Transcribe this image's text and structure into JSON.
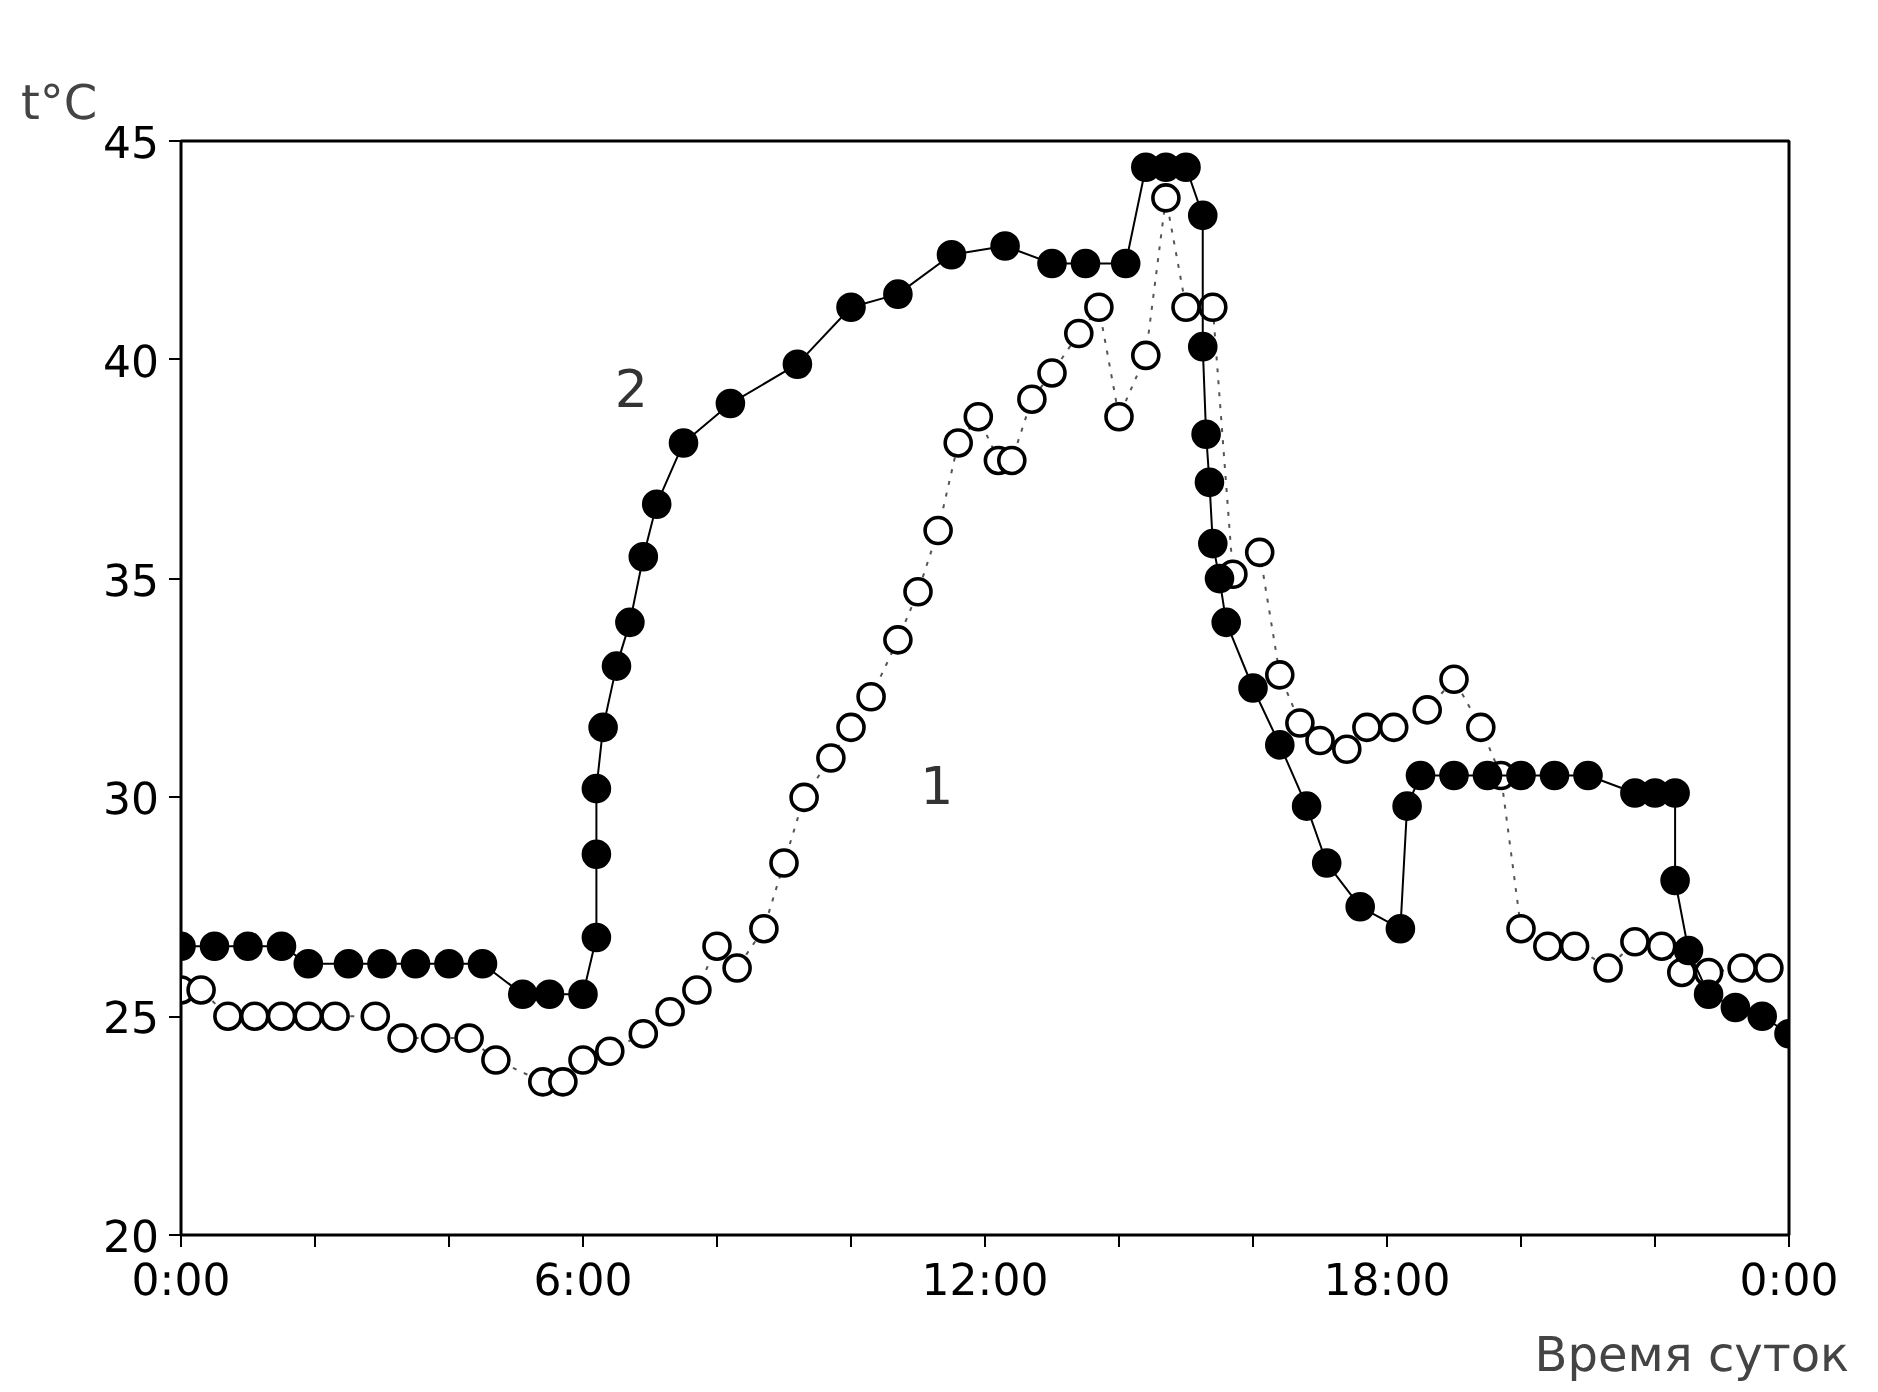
{
  "chart_data": {
    "type": "line",
    "xlabel": "Время суток",
    "ylabel": "t°C",
    "xlim": [
      0,
      24
    ],
    "ylim": [
      20,
      45
    ],
    "xticks": [
      {
        "value": 0,
        "label": "0:00"
      },
      {
        "value": 2,
        "label": null
      },
      {
        "value": 4,
        "label": null
      },
      {
        "value": 6,
        "label": "6:00"
      },
      {
        "value": 8,
        "label": null
      },
      {
        "value": 10,
        "label": null
      },
      {
        "value": 12,
        "label": "12:00"
      },
      {
        "value": 14,
        "label": null
      },
      {
        "value": 16,
        "label": null
      },
      {
        "value": 18,
        "label": "18:00"
      },
      {
        "value": 20,
        "label": null
      },
      {
        "value": 22,
        "label": null
      },
      {
        "value": 24,
        "label": "0:00"
      }
    ],
    "yticks": [
      20,
      25,
      30,
      35,
      40,
      45
    ],
    "grid": false,
    "marker": "circle",
    "annotations": [
      "1",
      "2"
    ],
    "series": [
      {
        "color": "#ffffff",
        "line_style": "dotted",
        "x": [
          0,
          0.3,
          0.7,
          1.1,
          1.5,
          1.9,
          2.3,
          2.9,
          3.3,
          3.8,
          4.3,
          4.7,
          5.4,
          5.7,
          6.0,
          6.4,
          6.9,
          7.3,
          7.7,
          8.0,
          8.3,
          8.7,
          9.0,
          9.3,
          9.7,
          10.0,
          10.3,
          10.7,
          11.0,
          11.3,
          11.6,
          11.9,
          12.2,
          12.4,
          12.7,
          13.0,
          13.4,
          13.7,
          14.0,
          14.4,
          14.7,
          15.0,
          15.4,
          15.7,
          16.1,
          16.4,
          16.7,
          17.0,
          17.4,
          17.7,
          18.1,
          18.6,
          19.0,
          19.4,
          19.7,
          20.0,
          20.4,
          20.8,
          21.3,
          21.7,
          22.1,
          22.4,
          22.8,
          23.3,
          23.7
        ],
        "values": [
          25.6,
          25.6,
          25.0,
          25.0,
          25.0,
          25.0,
          25.0,
          25.0,
          24.5,
          24.5,
          24.5,
          24.0,
          23.5,
          23.5,
          24.0,
          24.2,
          24.6,
          25.1,
          25.6,
          26.6,
          26.1,
          27.0,
          28.5,
          30.0,
          30.9,
          31.6,
          32.3,
          33.6,
          34.7,
          36.1,
          38.1,
          38.7,
          37.7,
          37.7,
          39.1,
          39.7,
          40.6,
          41.2,
          38.7,
          40.1,
          43.7,
          41.2,
          41.2,
          35.1,
          35.6,
          32.8,
          31.7,
          31.3,
          31.1,
          31.6,
          31.6,
          32.0,
          32.7,
          31.6,
          30.5,
          27.0,
          26.6,
          26.6,
          26.1,
          26.7,
          26.6,
          26.0,
          26.0,
          26.1,
          26.1
        ]
      },
      {
        "color": "#000000",
        "line_style": "solid",
        "x": [
          0,
          0.5,
          1.0,
          1.5,
          1.9,
          2.5,
          3.0,
          3.5,
          4.0,
          4.5,
          5.1,
          5.5,
          6.0,
          6.2,
          6.2,
          6.2,
          6.3,
          6.5,
          6.7,
          6.9,
          7.1,
          7.5,
          8.2,
          9.2,
          10.0,
          10.7,
          11.5,
          12.3,
          13.0,
          13.5,
          14.1,
          14.4,
          14.7,
          15.0,
          15.25,
          15.25,
          15.3,
          15.35,
          15.4,
          15.5,
          15.6,
          16.0,
          16.4,
          16.8,
          17.1,
          17.6,
          18.2,
          18.3,
          18.5,
          19.0,
          19.5,
          20.0,
          20.5,
          21.0,
          21.7,
          22.0,
          22.3,
          22.3,
          22.5,
          22.8,
          23.2,
          23.6,
          24.0
        ],
        "values": [
          26.6,
          26.6,
          26.6,
          26.6,
          26.2,
          26.2,
          26.2,
          26.2,
          26.2,
          26.2,
          25.5,
          25.5,
          25.5,
          26.8,
          28.7,
          30.2,
          31.6,
          33.0,
          34.0,
          35.5,
          36.7,
          38.1,
          39.0,
          39.9,
          41.2,
          41.5,
          42.4,
          42.6,
          42.2,
          42.2,
          42.2,
          44.4,
          44.4,
          44.4,
          43.3,
          40.3,
          38.3,
          37.2,
          35.8,
          35.0,
          34.0,
          32.5,
          31.2,
          29.8,
          28.5,
          27.5,
          27.0,
          29.8,
          30.5,
          30.5,
          30.5,
          30.5,
          30.5,
          30.5,
          30.1,
          30.1,
          30.1,
          28.1,
          26.5,
          25.5,
          25.2,
          25.0,
          24.6
        ]
      }
    ]
  }
}
